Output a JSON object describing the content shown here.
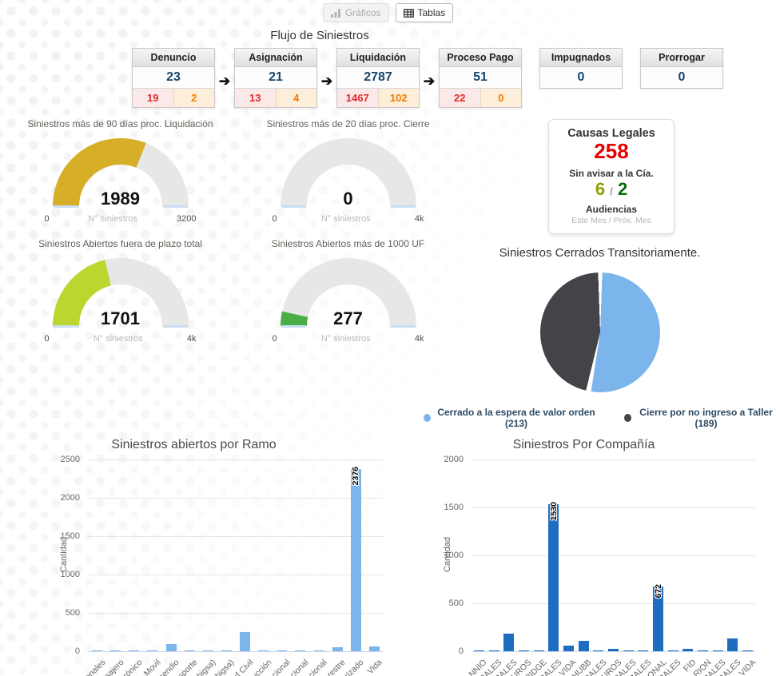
{
  "toolbar": {
    "graficos": "Gráficos",
    "tablas": "Tablas",
    "graficos_icon": "bar-chart-icon",
    "tablas_icon": "table-icon"
  },
  "flow": {
    "title": "Flujo de Siniestros",
    "boxes": [
      {
        "label": "Denuncio",
        "value": "23",
        "sub_red": "19",
        "sub_orange": "2",
        "arrow_after": true
      },
      {
        "label": "Asignación",
        "value": "21",
        "sub_red": "13",
        "sub_orange": "4",
        "arrow_after": true
      },
      {
        "label": "Liquidación",
        "value": "2787",
        "sub_red": "1467",
        "sub_orange": "102",
        "arrow_after": true
      },
      {
        "label": "Proceso Pago",
        "value": "51",
        "sub_red": "22",
        "sub_orange": "0",
        "arrow_after": false
      },
      {
        "label": "Impugnados",
        "value": "0"
      },
      {
        "label": "Prorrogar",
        "value": "0"
      }
    ],
    "arrow_glyph": "➔"
  },
  "legal": {
    "title": "Causas Legales",
    "value": "258",
    "sub_title": "Sin avisar a la Cía.",
    "value_a": "6",
    "separator": "/",
    "value_b": "2",
    "audiencias": "Audiencias",
    "period": "Este Mes / Próx. Mes"
  },
  "pie_legend": [
    {
      "label": "Cerrado a la espera de valor orden (213)",
      "color": "#7cb5ec"
    },
    {
      "label": "Cierre por no ingreso a Taller (189)",
      "color": "#434348"
    }
  ],
  "chart_data": [
    {
      "type": "gauge",
      "title": "Siniestros más de 90 días proc. Liquidación",
      "value": 1989,
      "min": 0,
      "max": 3200,
      "min_label": "0",
      "max_label": "3200",
      "axis_label": "N° siniestros",
      "color": "#d6ae27",
      "track_color": "#e7e7e7"
    },
    {
      "type": "gauge",
      "title": "Siniestros más de 20 días proc. Cierre",
      "value": 0,
      "min": 0,
      "max": 4000,
      "min_label": "0",
      "max_label": "4k",
      "axis_label": "N° siniestros",
      "color": "#7cb5ec",
      "track_color": "#e7e7e7"
    },
    {
      "type": "gauge",
      "title": "Siniestros Abiertos fuera de plazo total",
      "value": 1701,
      "min": 0,
      "max": 4000,
      "min_label": "0",
      "max_label": "4k",
      "axis_label": "N° siniestros",
      "color": "#bdd62f",
      "track_color": "#e7e7e7"
    },
    {
      "type": "gauge",
      "title": "Siniestros Abiertos más de 1000 UF",
      "value": 277,
      "min": 0,
      "max": 4000,
      "min_label": "0",
      "max_label": "4k",
      "axis_label": "N° siniestros",
      "color": "#4aae46",
      "track_color": "#e7e7e7"
    },
    {
      "type": "pie",
      "title": "Siniestros Cerrados Transitoriamente.",
      "slices": [
        {
          "label": "Cerrado a la espera de valor orden (213)",
          "value": 213,
          "color": "#7cb5ec"
        },
        {
          "label": "Cierre por no ingreso a Taller (189)",
          "value": 189,
          "color": "#434348"
        }
      ],
      "legend_position": "bottom"
    },
    {
      "type": "bar",
      "title": "Siniestros abiertos por Ramo",
      "ylabel": "Cantidad",
      "ylim": [
        0,
        2500
      ],
      "yticks": [
        0,
        500,
        1000,
        1500,
        2000,
        2500
      ],
      "categories": [
        "onales",
        "sajero",
        "rónico",
        "Movil",
        "cendio",
        "sporte",
        "higsa)",
        "higsa)",
        "d Civil",
        "ucción",
        "cional",
        "cional",
        "cional",
        "restre",
        "rizado",
        "Vida"
      ],
      "values": [
        5,
        5,
        5,
        15,
        90,
        5,
        3,
        3,
        255,
        5,
        3,
        3,
        3,
        48,
        2376,
        65
      ],
      "bar_labels": {
        "14": "2376"
      },
      "color": "#7cb5ec",
      "grid": true,
      "legend": false
    },
    {
      "type": "bar",
      "title": "Siniestros Por Compañía",
      "ylabel": "Cantidad",
      "ylim": [
        0,
        2000
      ],
      "yticks": [
        0,
        500,
        1000,
        1500,
        2000
      ],
      "categories": [
        "NNIO",
        "RALES",
        "RALES",
        "UROS",
        "RIDGE",
        "RALES",
        "VIDA",
        "CHUBB",
        "RALES",
        "UROS",
        "RALES",
        "RALES",
        "ONAL",
        "RALES",
        "FID",
        "RION",
        "RALES",
        "RALES",
        "VIDA"
      ],
      "values": [
        3,
        3,
        180,
        3,
        8,
        1530,
        55,
        110,
        8,
        28,
        5,
        12,
        672,
        10,
        28,
        5,
        5,
        130,
        5
      ],
      "bar_labels": {
        "5": "1530",
        "12": "672"
      },
      "color": "#1f6dc1",
      "grid": true,
      "legend": false
    }
  ]
}
